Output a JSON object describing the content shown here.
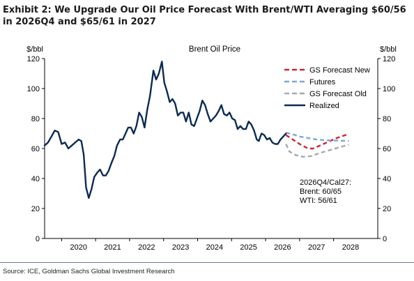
{
  "header": {
    "title": "Exhibit 2: We Upgrade Our Oil Price Forecast With Brent/WTI Averaging $60/56 in 2026Q4 and $65/61 in 2027"
  },
  "footer": {
    "source": "Source: ICE, Goldman Sachs Global Investment Research"
  },
  "chart_data": {
    "type": "line",
    "title": "Brent Oil Price",
    "ylabel_left": "$/bbl",
    "ylabel_right": "$/bbl",
    "ylim": [
      0,
      120
    ],
    "yticks": [
      0,
      20,
      40,
      60,
      80,
      100,
      120
    ],
    "xlim": [
      2019.0,
      2028.8
    ],
    "xticks": [
      2020,
      2021,
      2022,
      2023,
      2024,
      2025,
      2026,
      2027,
      2028
    ],
    "grid": false,
    "legend_position": "top-right",
    "annotation": [
      "2026Q4/Cal27:",
      "Brent: 60/65",
      "WTI: 56/61"
    ],
    "colors": {
      "realized": "#0d2a4f",
      "gs_new": "#c8282e",
      "futures": "#7ea6d3",
      "gs_old": "#a7a9ac",
      "axis": "#000000"
    },
    "series": [
      {
        "name": "GS Forecast New",
        "style": "dashed",
        "color": "#c8282e",
        "points": [
          [
            2026.1,
            69
          ],
          [
            2026.3,
            66
          ],
          [
            2026.5,
            63
          ],
          [
            2026.75,
            60
          ],
          [
            2026.9,
            60
          ],
          [
            2027.1,
            62
          ],
          [
            2027.35,
            64.5
          ],
          [
            2027.6,
            67
          ],
          [
            2027.85,
            69
          ],
          [
            2027.95,
            70
          ]
        ]
      },
      {
        "name": "Futures",
        "style": "dashed",
        "color": "#7ea6d3",
        "points": [
          [
            2026.1,
            70.5
          ],
          [
            2026.3,
            69.5
          ],
          [
            2026.5,
            68
          ],
          [
            2026.75,
            67
          ],
          [
            2027.0,
            66
          ],
          [
            2027.3,
            65.5
          ],
          [
            2027.6,
            65.3
          ],
          [
            2027.95,
            65
          ]
        ]
      },
      {
        "name": "GS Forecast Old",
        "style": "dashed",
        "color": "#a7a9ac",
        "points": [
          [
            2026.1,
            63
          ],
          [
            2026.2,
            58
          ],
          [
            2026.4,
            55.5
          ],
          [
            2026.6,
            54.5
          ],
          [
            2026.85,
            55
          ],
          [
            2027.1,
            57
          ],
          [
            2027.4,
            59
          ],
          [
            2027.7,
            61
          ],
          [
            2027.95,
            62.5
          ]
        ]
      },
      {
        "name": "Realized",
        "style": "solid",
        "color": "#0d2a4f",
        "points": [
          [
            2019.0,
            62
          ],
          [
            2019.1,
            64
          ],
          [
            2019.2,
            68
          ],
          [
            2019.3,
            72
          ],
          [
            2019.4,
            71
          ],
          [
            2019.5,
            63
          ],
          [
            2019.6,
            64
          ],
          [
            2019.7,
            60
          ],
          [
            2019.8,
            62
          ],
          [
            2019.9,
            64
          ],
          [
            2020.0,
            66
          ],
          [
            2020.08,
            65
          ],
          [
            2020.15,
            56
          ],
          [
            2020.22,
            34
          ],
          [
            2020.3,
            27
          ],
          [
            2020.38,
            33
          ],
          [
            2020.46,
            41
          ],
          [
            2020.55,
            44
          ],
          [
            2020.63,
            46
          ],
          [
            2020.72,
            42
          ],
          [
            2020.8,
            42
          ],
          [
            2020.88,
            45
          ],
          [
            2020.96,
            50
          ],
          [
            2021.05,
            55
          ],
          [
            2021.13,
            62
          ],
          [
            2021.22,
            66
          ],
          [
            2021.3,
            66
          ],
          [
            2021.38,
            70
          ],
          [
            2021.46,
            74
          ],
          [
            2021.54,
            74
          ],
          [
            2021.62,
            70
          ],
          [
            2021.7,
            75
          ],
          [
            2021.78,
            84
          ],
          [
            2021.86,
            81
          ],
          [
            2021.94,
            74
          ],
          [
            2022.02,
            86
          ],
          [
            2022.1,
            95
          ],
          [
            2022.2,
            112
          ],
          [
            2022.28,
            106
          ],
          [
            2022.36,
            110
          ],
          [
            2022.45,
            118
          ],
          [
            2022.52,
            104
          ],
          [
            2022.6,
            98
          ],
          [
            2022.68,
            91
          ],
          [
            2022.76,
            93
          ],
          [
            2022.84,
            90
          ],
          [
            2022.92,
            82
          ],
          [
            2023.0,
            84
          ],
          [
            2023.08,
            84
          ],
          [
            2023.16,
            78
          ],
          [
            2023.24,
            84
          ],
          [
            2023.32,
            76
          ],
          [
            2023.4,
            75
          ],
          [
            2023.48,
            80
          ],
          [
            2023.56,
            85
          ],
          [
            2023.64,
            92
          ],
          [
            2023.72,
            89
          ],
          [
            2023.8,
            83
          ],
          [
            2023.88,
            78
          ],
          [
            2023.96,
            80
          ],
          [
            2024.04,
            82
          ],
          [
            2024.12,
            85
          ],
          [
            2024.2,
            89
          ],
          [
            2024.28,
            83
          ],
          [
            2024.36,
            82
          ],
          [
            2024.44,
            84
          ],
          [
            2024.52,
            80
          ],
          [
            2024.6,
            79
          ],
          [
            2024.68,
            73
          ],
          [
            2024.76,
            75
          ],
          [
            2024.84,
            73
          ],
          [
            2024.92,
            73
          ],
          [
            2025.0,
            78
          ],
          [
            2025.08,
            76
          ],
          [
            2025.16,
            72
          ],
          [
            2025.24,
            66
          ],
          [
            2025.3,
            65
          ],
          [
            2025.38,
            70
          ],
          [
            2025.46,
            69
          ],
          [
            2025.54,
            66
          ],
          [
            2025.62,
            67
          ],
          [
            2025.7,
            64
          ],
          [
            2025.78,
            63
          ],
          [
            2025.86,
            63
          ],
          [
            2025.94,
            66
          ],
          [
            2026.02,
            68
          ],
          [
            2026.1,
            70
          ]
        ]
      }
    ]
  }
}
